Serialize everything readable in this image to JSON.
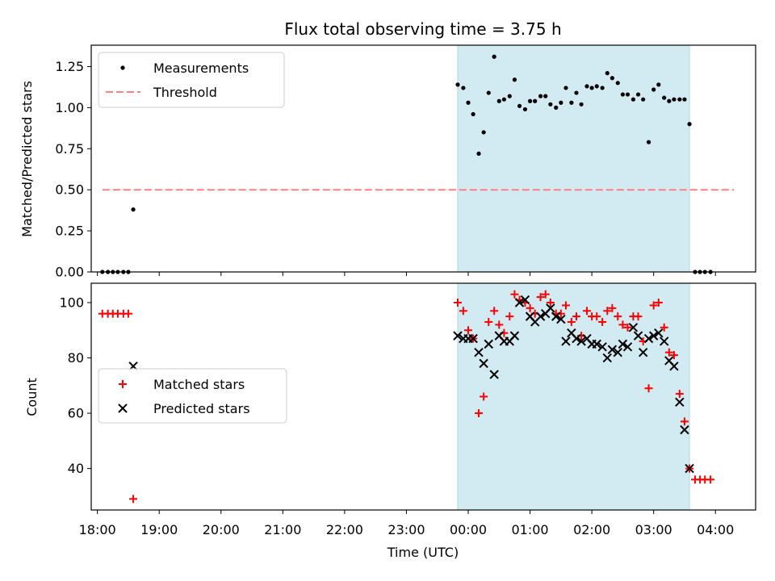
{
  "chart_data": {
    "title": "Flux total observing time = 3.75 h",
    "xlabel": "Time (UTC)",
    "x_tick_labels": [
      "18:00",
      "19:00",
      "20:00",
      "21:00",
      "22:00",
      "23:00",
      "00:00",
      "01:00",
      "02:00",
      "03:00",
      "04:00"
    ],
    "x_range_hours": [
      17.9,
      28.65
    ],
    "shaded_interval_hours": [
      23.83,
      27.58
    ],
    "colors": {
      "shade": "#add8e6",
      "measurements": "#000000",
      "threshold": "#ff7f7f",
      "matched": "#ff0000",
      "predicted": "#000000"
    },
    "panels": [
      {
        "type": "scatter",
        "ylabel": "Matched/Predicted stars",
        "ylim": [
          0,
          1.38
        ],
        "yticks": [
          "0.00",
          "0.25",
          "0.50",
          "0.75",
          "1.00",
          "1.25"
        ],
        "ytick_values": [
          0,
          0.25,
          0.5,
          0.75,
          1.0,
          1.25
        ],
        "legend_position": "upper-left",
        "threshold": {
          "name": "Threshold",
          "value": 0.5,
          "x_range": [
            18.08,
            28.3
          ]
        },
        "series": [
          {
            "name": "Measurements",
            "points": [
              [
                18.08,
                0
              ],
              [
                18.17,
                0
              ],
              [
                18.25,
                0
              ],
              [
                18.33,
                0
              ],
              [
                18.42,
                0
              ],
              [
                18.5,
                0
              ],
              [
                18.58,
                0.38
              ],
              [
                23.83,
                1.14
              ],
              [
                23.92,
                1.12
              ],
              [
                24.0,
                1.03
              ],
              [
                24.08,
                0.96
              ],
              [
                24.17,
                0.72
              ],
              [
                24.25,
                0.85
              ],
              [
                24.33,
                1.09
              ],
              [
                24.42,
                1.31
              ],
              [
                24.5,
                1.04
              ],
              [
                24.58,
                1.05
              ],
              [
                24.67,
                1.07
              ],
              [
                24.75,
                1.17
              ],
              [
                24.83,
                1.01
              ],
              [
                24.92,
                0.99
              ],
              [
                25.0,
                1.04
              ],
              [
                25.08,
                1.04
              ],
              [
                25.17,
                1.07
              ],
              [
                25.25,
                1.07
              ],
              [
                25.33,
                1.02
              ],
              [
                25.42,
                1.0
              ],
              [
                25.5,
                1.03
              ],
              [
                25.58,
                1.12
              ],
              [
                25.67,
                1.03
              ],
              [
                25.75,
                1.09
              ],
              [
                25.83,
                1.02
              ],
              [
                25.92,
                1.13
              ],
              [
                26.0,
                1.12
              ],
              [
                26.08,
                1.13
              ],
              [
                26.17,
                1.12
              ],
              [
                26.25,
                1.21
              ],
              [
                26.33,
                1.18
              ],
              [
                26.42,
                1.15
              ],
              [
                26.5,
                1.08
              ],
              [
                26.58,
                1.08
              ],
              [
                26.67,
                1.05
              ],
              [
                26.75,
                1.08
              ],
              [
                26.83,
                1.05
              ],
              [
                26.92,
                0.79
              ],
              [
                27.0,
                1.11
              ],
              [
                27.08,
                1.14
              ],
              [
                27.17,
                1.06
              ],
              [
                27.25,
                1.04
              ],
              [
                27.33,
                1.05
              ],
              [
                27.42,
                1.05
              ],
              [
                27.5,
                1.05
              ],
              [
                27.58,
                0.9
              ],
              [
                27.67,
                0
              ],
              [
                27.75,
                0
              ],
              [
                27.83,
                0
              ],
              [
                27.92,
                0
              ]
            ]
          }
        ]
      },
      {
        "type": "scatter",
        "ylabel": "Count",
        "ylim": [
          25,
          107
        ],
        "yticks": [
          "40",
          "60",
          "80",
          "100"
        ],
        "ytick_values": [
          40,
          60,
          80,
          100
        ],
        "legend_position": "center-left",
        "series": [
          {
            "name": "Matched stars",
            "marker": "plus",
            "points": [
              [
                18.08,
                96
              ],
              [
                18.17,
                96
              ],
              [
                18.25,
                96
              ],
              [
                18.33,
                96
              ],
              [
                18.42,
                96
              ],
              [
                18.5,
                96
              ],
              [
                18.58,
                29
              ],
              [
                23.83,
                100
              ],
              [
                23.92,
                97
              ],
              [
                24.0,
                90
              ],
              [
                24.08,
                87
              ],
              [
                24.17,
                60
              ],
              [
                24.25,
                66
              ],
              [
                24.33,
                93
              ],
              [
                24.42,
                97
              ],
              [
                24.5,
                92
              ],
              [
                24.58,
                89
              ],
              [
                24.67,
                95
              ],
              [
                24.75,
                103
              ],
              [
                24.83,
                101
              ],
              [
                24.92,
                100
              ],
              [
                25.0,
                98
              ],
              [
                25.08,
                96
              ],
              [
                25.17,
                102
              ],
              [
                25.25,
                103
              ],
              [
                25.33,
                100
              ],
              [
                25.42,
                96
              ],
              [
                25.5,
                96
              ],
              [
                25.58,
                99
              ],
              [
                25.67,
                93
              ],
              [
                25.75,
                95
              ],
              [
                25.83,
                88
              ],
              [
                25.92,
                97
              ],
              [
                26.0,
                95
              ],
              [
                26.08,
                95
              ],
              [
                26.17,
                93
              ],
              [
                26.25,
                97
              ],
              [
                26.33,
                98
              ],
              [
                26.42,
                95
              ],
              [
                26.5,
                92
              ],
              [
                26.58,
                91
              ],
              [
                26.67,
                95
              ],
              [
                26.75,
                95
              ],
              [
                26.83,
                86
              ],
              [
                26.92,
                69
              ],
              [
                27.0,
                99
              ],
              [
                27.08,
                100
              ],
              [
                27.17,
                91
              ],
              [
                27.25,
                82
              ],
              [
                27.33,
                81
              ],
              [
                27.42,
                67
              ],
              [
                27.5,
                57
              ],
              [
                27.58,
                40
              ],
              [
                27.67,
                36
              ],
              [
                27.75,
                36
              ],
              [
                27.83,
                36
              ],
              [
                27.92,
                36
              ]
            ]
          },
          {
            "name": "Predicted stars",
            "marker": "x",
            "points": [
              [
                18.58,
                77
              ],
              [
                23.83,
                88
              ],
              [
                23.92,
                87
              ],
              [
                24.0,
                87
              ],
              [
                24.08,
                87
              ],
              [
                24.17,
                82
              ],
              [
                24.25,
                78
              ],
              [
                24.33,
                85
              ],
              [
                24.42,
                74
              ],
              [
                24.5,
                88
              ],
              [
                24.58,
                86
              ],
              [
                24.67,
                86
              ],
              [
                24.75,
                88
              ],
              [
                24.83,
                100
              ],
              [
                24.92,
                101
              ],
              [
                25.0,
                95
              ],
              [
                25.08,
                93
              ],
              [
                25.17,
                95
              ],
              [
                25.25,
                96
              ],
              [
                25.33,
                98
              ],
              [
                25.42,
                95
              ],
              [
                25.5,
                94
              ],
              [
                25.58,
                86
              ],
              [
                25.67,
                89
              ],
              [
                25.75,
                87
              ],
              [
                25.83,
                86
              ],
              [
                25.92,
                87
              ],
              [
                26.0,
                85
              ],
              [
                26.08,
                85
              ],
              [
                26.17,
                84
              ],
              [
                26.25,
                80
              ],
              [
                26.33,
                83
              ],
              [
                26.42,
                82
              ],
              [
                26.5,
                85
              ],
              [
                26.58,
                84
              ],
              [
                26.67,
                91
              ],
              [
                26.75,
                88
              ],
              [
                26.83,
                82
              ],
              [
                26.92,
                87
              ],
              [
                27.0,
                88
              ],
              [
                27.08,
                89
              ],
              [
                27.17,
                86
              ],
              [
                27.25,
                79
              ],
              [
                27.33,
                77
              ],
              [
                27.42,
                64
              ],
              [
                27.5,
                54
              ],
              [
                27.58,
                40
              ]
            ]
          }
        ]
      }
    ]
  }
}
